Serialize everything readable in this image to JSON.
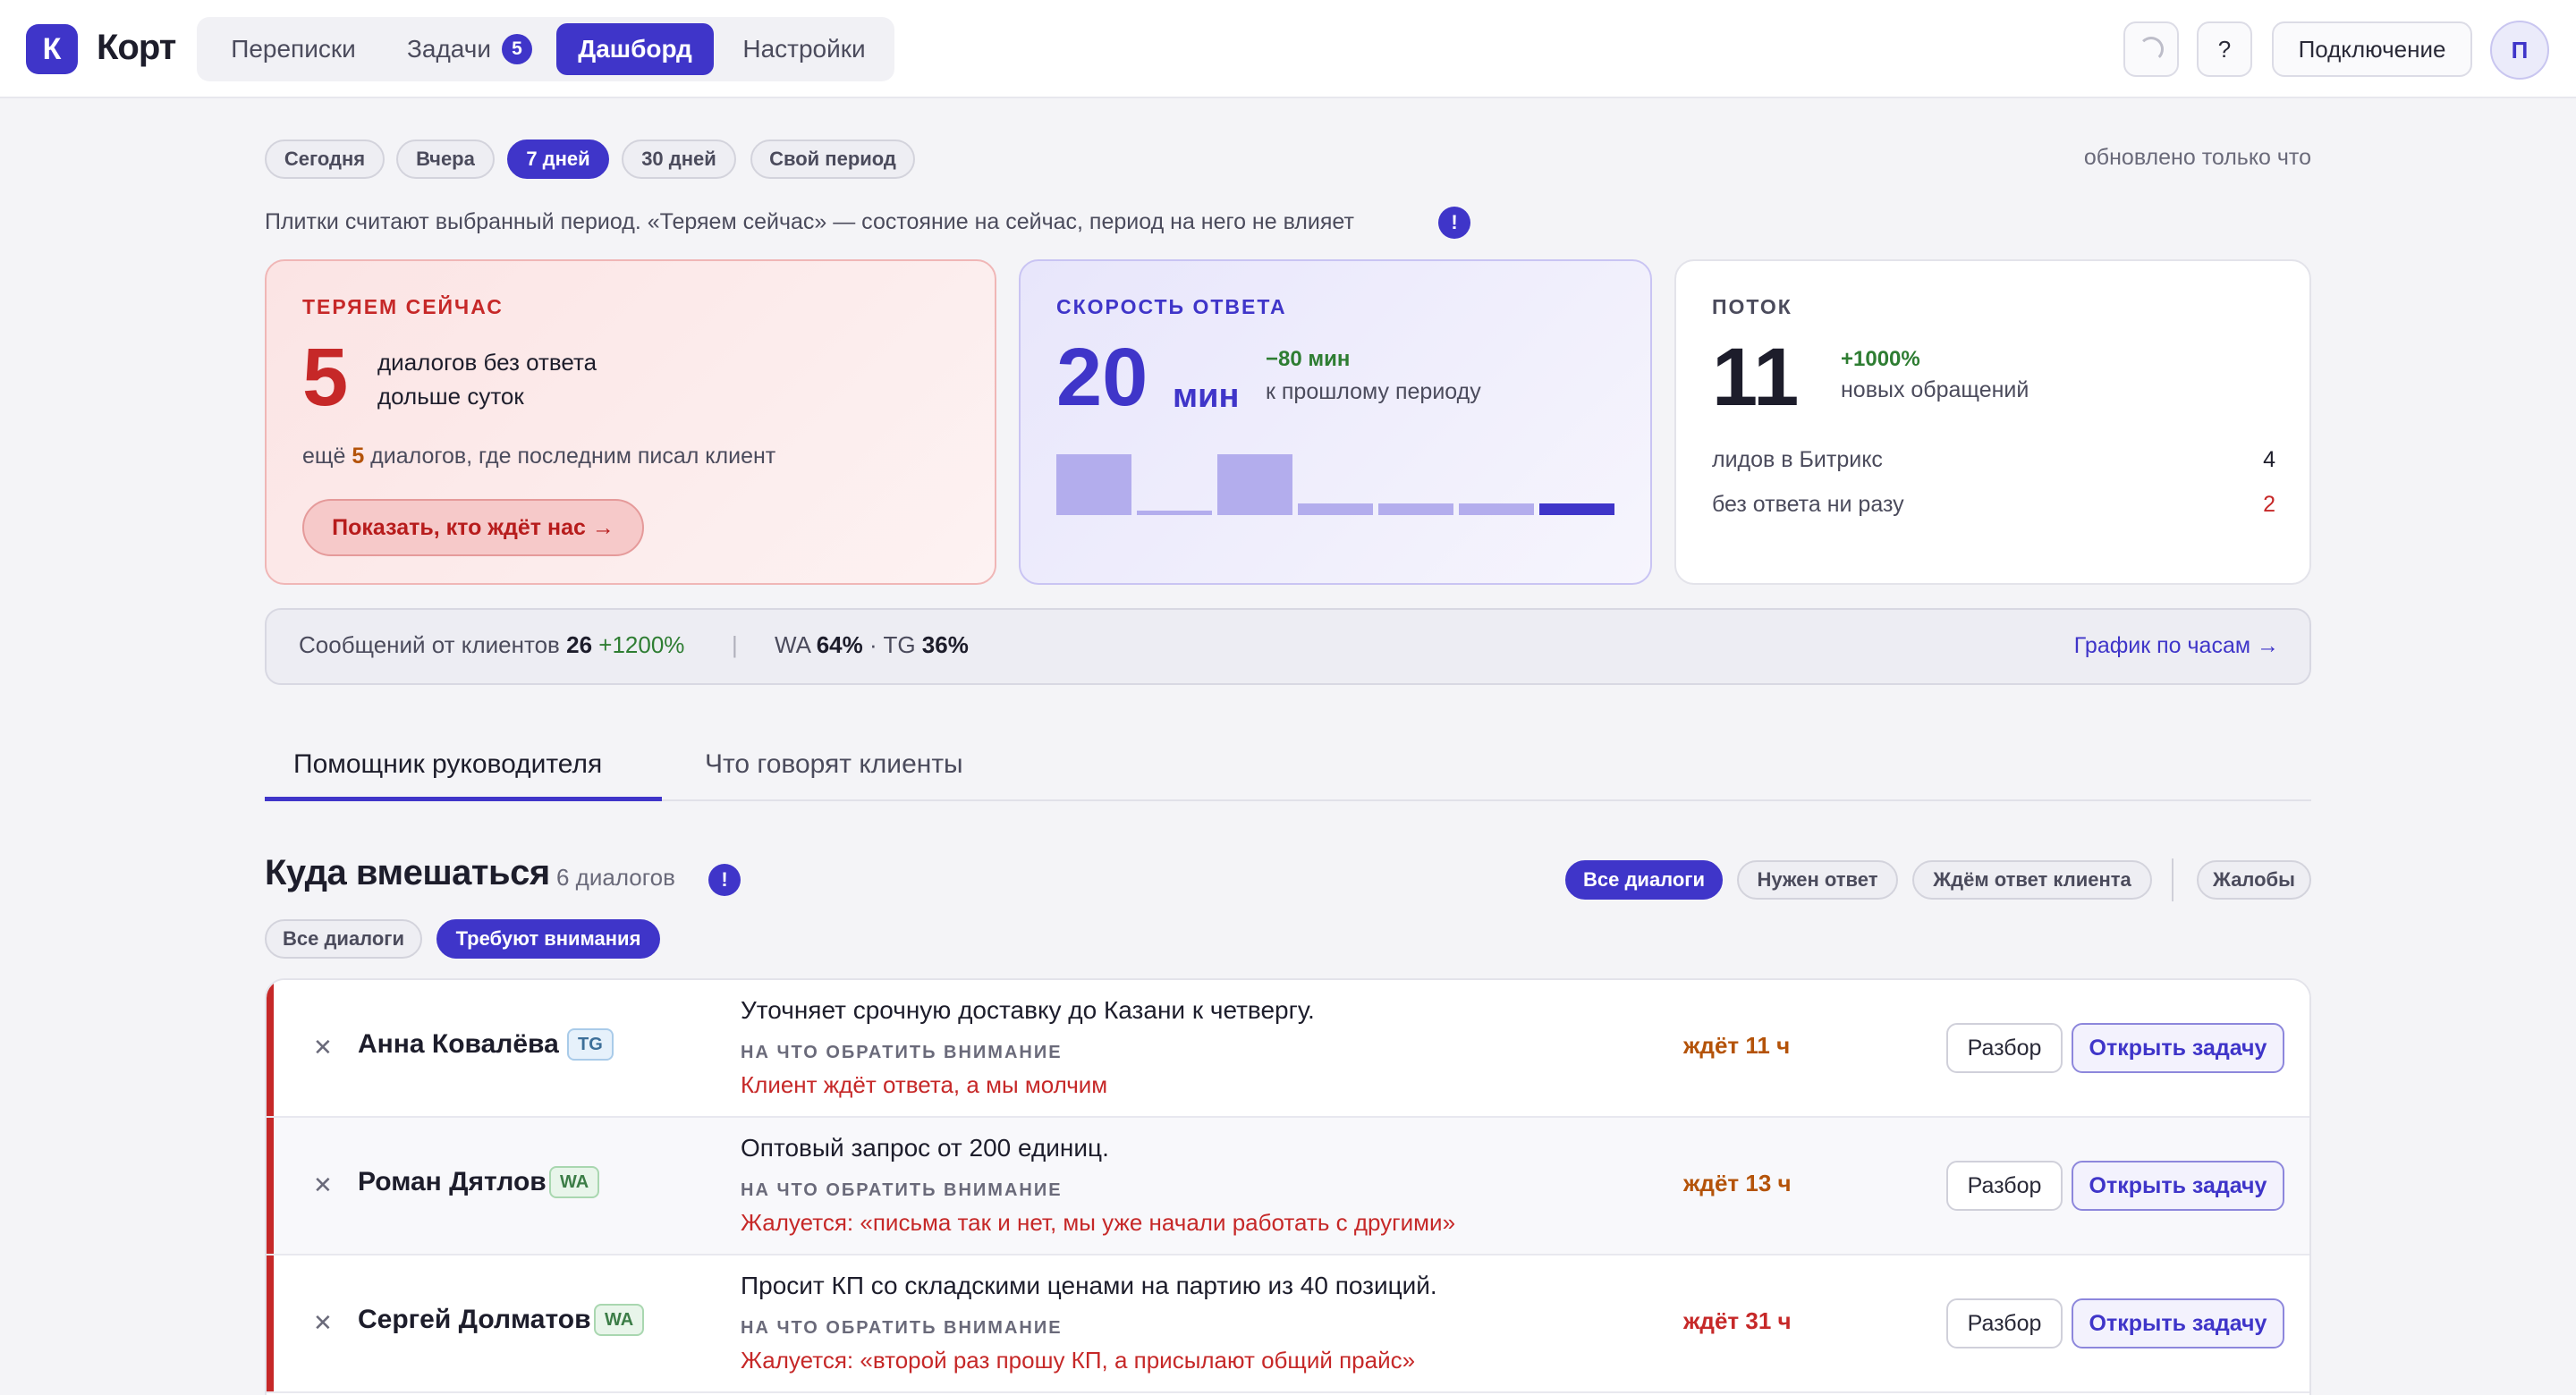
{
  "app": {
    "logo_letter": "К",
    "name": "Корт"
  },
  "nav": {
    "items": [
      {
        "label": "Переписки"
      },
      {
        "label": "Задачи",
        "badge": "5"
      },
      {
        "label": "Дашборд",
        "active": true
      },
      {
        "label": "Настройки"
      }
    ]
  },
  "toolbar": {
    "help_label": "?",
    "connect_label": "Подключение",
    "avatar_letter": "П"
  },
  "period": {
    "chips": [
      "Сегодня",
      "Вчера",
      "7 дней",
      "30 дней",
      "Свой период"
    ],
    "selected": "7 дней",
    "updated": "обновлено только что",
    "note": "Плитки считают выбранный период. «Теряем сейчас» — состояние на сейчас, период на него не влияет",
    "info_icon": "!"
  },
  "cards": {
    "losing": {
      "title": "ТЕРЯЕМ СЕЙЧАС",
      "value": "5",
      "desc1": "диалогов без ответа",
      "desc2": "дольше суток",
      "extra_pre": "ещё ",
      "extra_num": "5",
      "extra_post": " диалогов, где последним писал клиент",
      "button": "Показать, кто ждёт нас →"
    },
    "speed": {
      "title": "СКОРОСТЬ ОТВЕТА",
      "value": "20",
      "unit": "мин",
      "delta": "−80 мин",
      "delta_label": "к прошлому периоду",
      "bars": [
        0.9,
        0.06,
        0.9,
        0.17,
        0.17,
        0.17,
        0.17
      ]
    },
    "flow": {
      "title": "ПОТОК",
      "value": "11",
      "delta": "+1000%",
      "delta_label": "новых обращений",
      "rows": [
        {
          "label": "лидов в Битрикс",
          "value": "4"
        },
        {
          "label": "без ответа ни разу",
          "value": "2"
        }
      ]
    }
  },
  "messages_strip": {
    "label": "Сообщений от клиентов",
    "count": "26",
    "delta": "+1200%",
    "sep": "|",
    "wa_label": "WA",
    "wa_value": "64%",
    "dot": "·",
    "tg_label": "TG",
    "tg_value": "36%",
    "link": "График по часам →"
  },
  "tabs": [
    {
      "label": "Помощник руководителя",
      "active": true
    },
    {
      "label": "Что говорят клиенты"
    }
  ],
  "section": {
    "title": "Куда вмешаться",
    "count": "6 диалогов",
    "info_icon": "!",
    "filters": [
      "Все диалоги",
      "Нужен ответ",
      "Ждём ответ клиента",
      "Жалобы"
    ],
    "subfilters": [
      "Все диалоги",
      "Требуют внимания"
    ]
  },
  "rows": [
    {
      "name": "Анна Ковалёва",
      "channel": "TG",
      "desc": "Уточняет срочную доставку до Казани к четвергу.",
      "attention_label": "НА ЧТО ОБРАТИТЬ ВНИМАНИЕ",
      "attention": "Клиент ждёт ответа, а мы молчим",
      "wait": "ждёт 11 ч",
      "review": "Разбор",
      "open": "Открыть задачу"
    },
    {
      "name": "Роман Дятлов",
      "channel": "WA",
      "desc": "Оптовый запрос от 200 единиц.",
      "attention_label": "НА ЧТО ОБРАТИТЬ ВНИМАНИЕ",
      "attention": "Жалуется: «письма так и нет, мы уже начали работать с другими»",
      "wait": "ждёт 13 ч",
      "review": "Разбор",
      "open": "Открыть задачу"
    },
    {
      "name": "Сергей Долматов",
      "channel": "WA",
      "desc": "Просит КП со складскими ценами на партию из 40 позиций.",
      "attention_label": "НА ЧТО ОБРАТИТЬ ВНИМАНИЕ",
      "attention": "Жалуется: «второй раз прошу КП, а присылают общий прайс»",
      "wait": "ждёт 31 ч",
      "review": "Разбор",
      "open": "Открыть задачу"
    }
  ],
  "colors": {
    "accent": "#3f35c9",
    "danger": "#c62828",
    "positive": "#2e7d32",
    "wait": "#b45309"
  }
}
